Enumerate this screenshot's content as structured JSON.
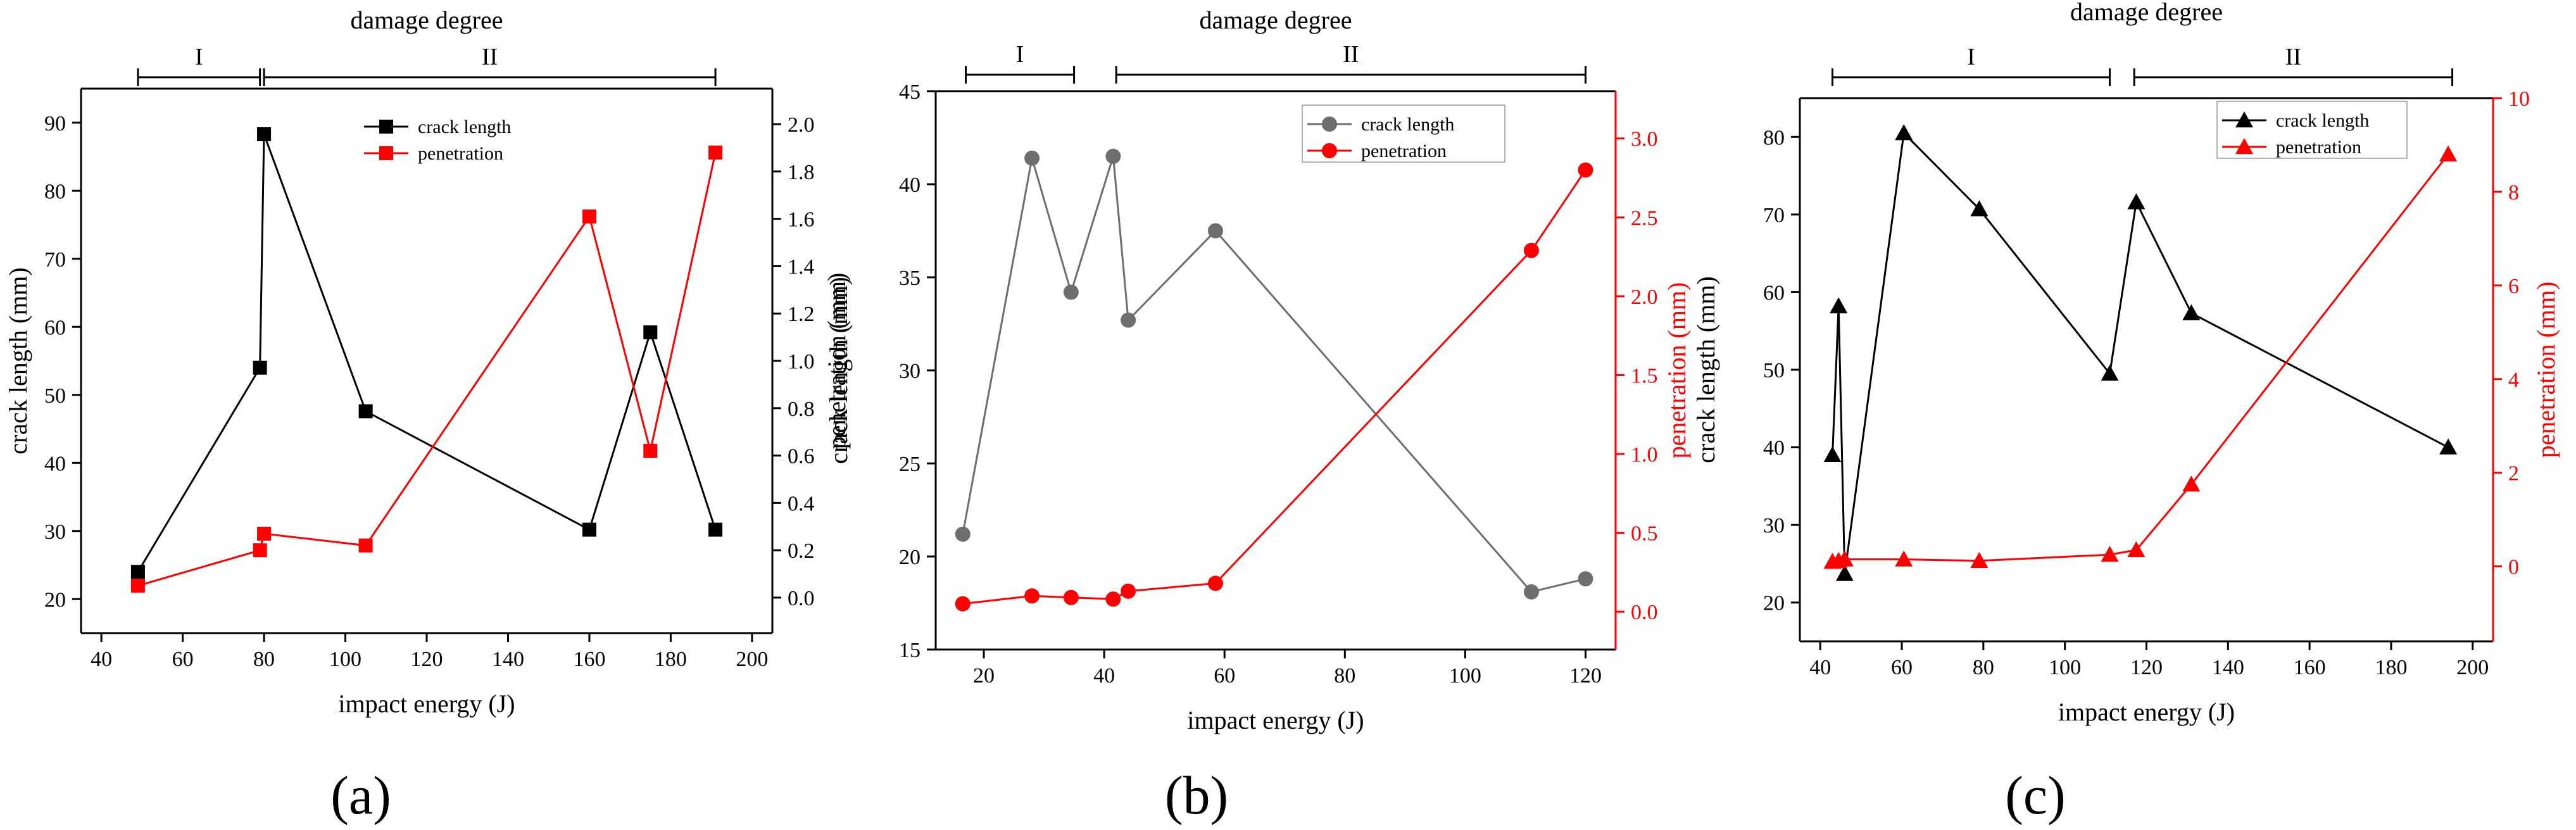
{
  "colors": {
    "axis": "#000000",
    "left_a": "#000000",
    "left_b": "#6e6e6e",
    "left_c": "#000000",
    "right": "#ff0000"
  },
  "chart_data": [
    {
      "type": "line",
      "panel_label": "(a)",
      "marker": "square",
      "top_title": "damage degree",
      "degree_ranges": [
        {
          "label": "I",
          "range": [
            49,
            79
          ]
        },
        {
          "label": "II",
          "range": [
            80,
            191
          ]
        }
      ],
      "xlabel": "impact energy (J)",
      "xlim": [
        35,
        205
      ],
      "xticks": [
        40,
        60,
        80,
        100,
        120,
        140,
        160,
        180,
        200
      ],
      "ylabel_left": "crack length (mm)",
      "ylim_left": [
        15,
        95
      ],
      "yticks_left": [
        20,
        30,
        40,
        50,
        60,
        70,
        80,
        90
      ],
      "ylabel_right": "penetration (mm)",
      "ylim_right": [
        -0.15,
        2.15
      ],
      "yticks_right": [
        0.0,
        0.2,
        0.4,
        0.6,
        0.8,
        1.0,
        1.2,
        1.4,
        1.6,
        1.8,
        2.0
      ],
      "yticks_right_labels": [
        "0.0",
        "0.2",
        "0.4",
        "0.6",
        "0.8",
        "1.0",
        "1.2",
        "1.4",
        "1.6",
        "1.8",
        "2.0"
      ],
      "right_axis_red": false,
      "legend": {
        "position": "top-center",
        "entries": [
          "crack length",
          "penetration"
        ]
      },
      "series": [
        {
          "name": "crack length",
          "axis": "left",
          "color": "#000000",
          "x": [
            49,
            79,
            80,
            105,
            160,
            175,
            191
          ],
          "y": [
            24,
            54,
            88.3,
            47.6,
            30.2,
            59.2,
            30.2
          ]
        },
        {
          "name": "penetration",
          "axis": "right",
          "color": "#ff0000",
          "x": [
            49,
            79,
            80,
            105,
            160,
            175,
            191
          ],
          "y": [
            0.05,
            0.2,
            0.27,
            0.22,
            1.61,
            0.62,
            1.88
          ]
        }
      ]
    },
    {
      "type": "line",
      "panel_label": "(b)",
      "marker": "circle",
      "top_title": "damage degree",
      "degree_ranges": [
        {
          "label": "I",
          "range": [
            17,
            35
          ]
        },
        {
          "label": "II",
          "range": [
            42,
            120
          ]
        }
      ],
      "xlabel": "impact energy (J)",
      "xlim": [
        12,
        125
      ],
      "xticks": [
        20,
        40,
        60,
        80,
        100,
        120
      ],
      "ylabel_left": "crack length (mm)",
      "ylim_left": [
        15,
        45
      ],
      "yticks_left": [
        15,
        20,
        25,
        30,
        35,
        40,
        45
      ],
      "ylabel_right": "penetration (mm)",
      "ylim_right": [
        -0.24,
        3.3
      ],
      "yticks_right": [
        0.0,
        0.5,
        1.0,
        1.5,
        2.0,
        2.5,
        3.0
      ],
      "yticks_right_labels": [
        "0.0",
        "0.5",
        "1.0",
        "1.5",
        "2.0",
        "2.5",
        "3.0"
      ],
      "right_axis_red": true,
      "legend": {
        "position": "top-right",
        "entries": [
          "crack length",
          "penetration"
        ]
      },
      "series": [
        {
          "name": "crack length",
          "axis": "left",
          "color": "#6e6e6e",
          "x": [
            16.5,
            28,
            34.5,
            41.5,
            44,
            58.5,
            111,
            120
          ],
          "y": [
            21.2,
            41.4,
            34.2,
            41.5,
            32.7,
            37.5,
            18.1,
            18.8
          ]
        },
        {
          "name": "penetration",
          "axis": "right",
          "color": "#ff0000",
          "x": [
            16.5,
            28,
            34.5,
            41.5,
            44,
            58.5,
            111,
            120
          ],
          "y": [
            0.05,
            0.1,
            0.09,
            0.08,
            0.13,
            0.18,
            2.29,
            2.8
          ]
        }
      ]
    },
    {
      "type": "line",
      "panel_label": "(c)",
      "marker": "triangle",
      "top_title": "damage degree",
      "degree_ranges": [
        {
          "label": "I",
          "range": [
            43,
            111
          ]
        },
        {
          "label": "II",
          "range": [
            117,
            195
          ]
        }
      ],
      "xlabel": "impact energy (J)",
      "xlim": [
        35,
        205
      ],
      "xticks": [
        40,
        60,
        80,
        100,
        120,
        140,
        160,
        180,
        200
      ],
      "ylabel_left": "crack length (mm)",
      "ylim_left": [
        15,
        85
      ],
      "yticks_left": [
        20,
        30,
        40,
        50,
        60,
        70,
        80
      ],
      "ylabel_right": "penetration (mm)",
      "ylim_right": [
        -1.6,
        10
      ],
      "yticks_right": [
        0,
        2,
        4,
        6,
        8,
        10
      ],
      "yticks_right_labels": [
        "0",
        "2",
        "4",
        "6",
        "8",
        "10"
      ],
      "right_axis_red": true,
      "legend": {
        "position": "top-right",
        "entries": [
          "crack length",
          "penetration"
        ]
      },
      "series": [
        {
          "name": "crack length",
          "axis": "left",
          "color": "#000000",
          "x": [
            43,
            44.5,
            46,
            60.5,
            79,
            111,
            117.5,
            131,
            194
          ],
          "y": [
            39,
            58.2,
            23.7,
            80.5,
            70.7,
            49.5,
            71.6,
            57.3,
            40
          ]
        },
        {
          "name": "penetration",
          "axis": "right",
          "color": "#ff0000",
          "x": [
            43,
            44.5,
            46,
            60.5,
            79,
            111,
            117.5,
            131,
            194
          ],
          "y": [
            0.1,
            0.12,
            0.15,
            0.15,
            0.12,
            0.25,
            0.35,
            1.75,
            8.8
          ]
        }
      ]
    }
  ]
}
